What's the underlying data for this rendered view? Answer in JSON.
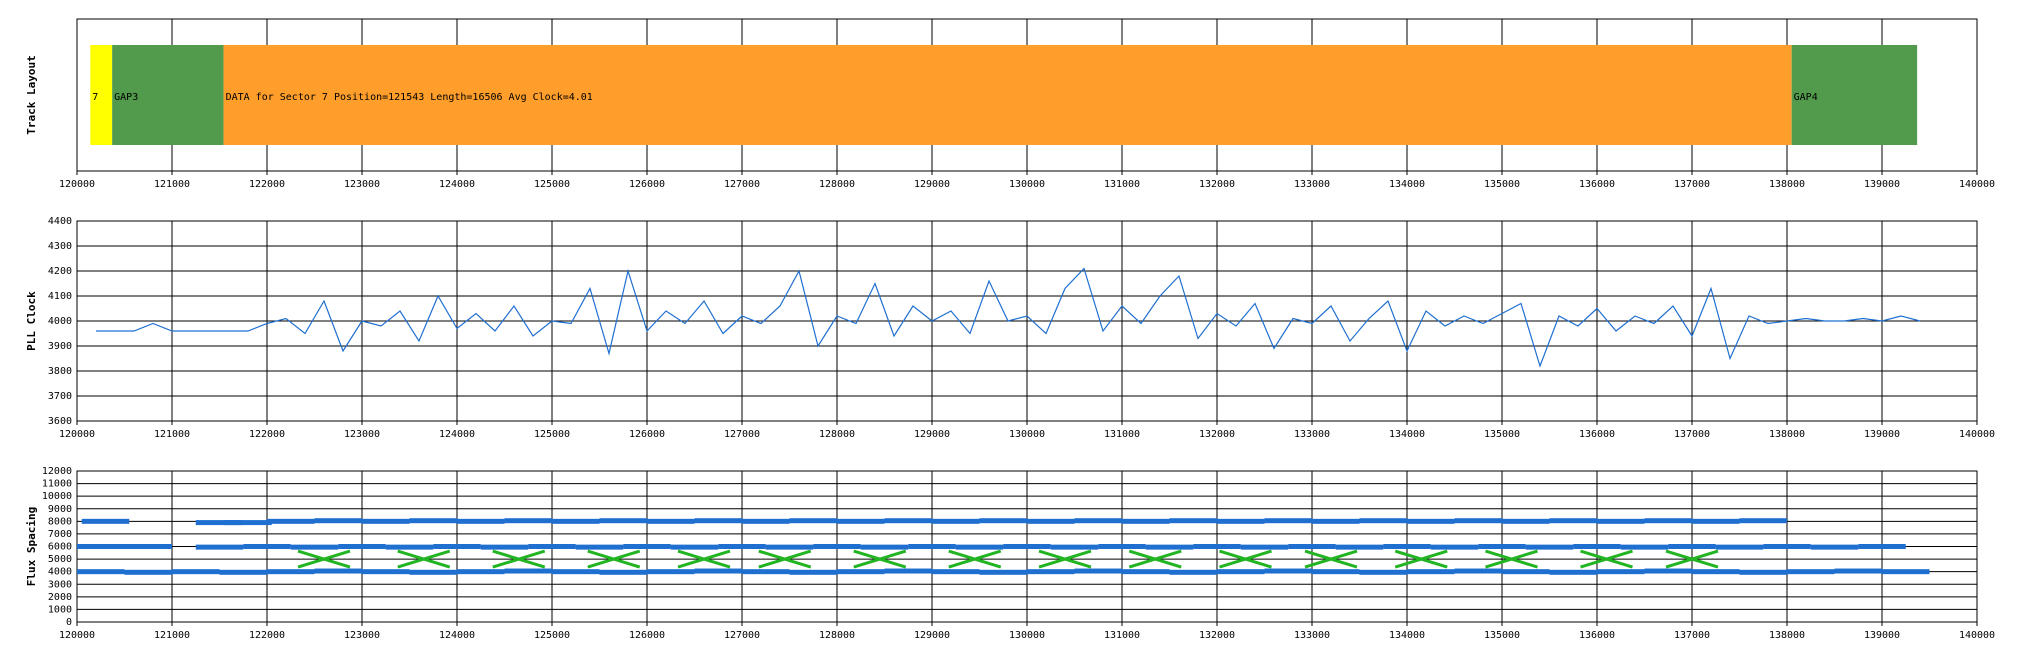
{
  "chart_data": [
    {
      "type": "track",
      "ylabel": "Track Layout",
      "segments": [
        {
          "label": "7",
          "start": 120140,
          "end": 120370,
          "color": "#ffff00"
        },
        {
          "label": "GAP3",
          "start": 120370,
          "end": 121543,
          "color": "#529a4c"
        },
        {
          "label": "DATA for Sector 7 Position=121543 Length=16506 Avg Clock=4.01",
          "start": 121543,
          "end": 138049,
          "color": "#ff9e2a"
        },
        {
          "label": "GAP4",
          "start": 138049,
          "end": 139370,
          "color": "#529a4c"
        }
      ],
      "xlim": [
        120000,
        140000
      ],
      "xticks": [
        120000,
        121000,
        122000,
        123000,
        124000,
        125000,
        126000,
        127000,
        128000,
        129000,
        130000,
        131000,
        132000,
        133000,
        134000,
        135000,
        136000,
        137000,
        138000,
        139000,
        140000
      ],
      "grid": true
    },
    {
      "type": "line",
      "ylabel": "PLL Clock",
      "x": [
        120200,
        120400,
        120600,
        120800,
        121000,
        121200,
        121400,
        121600,
        121800,
        122000,
        122200,
        122400,
        122600,
        122800,
        123000,
        123200,
        123400,
        123600,
        123800,
        124000,
        124200,
        124400,
        124600,
        124800,
        125000,
        125200,
        125400,
        125600,
        125800,
        126000,
        126200,
        126400,
        126600,
        126800,
        127000,
        127200,
        127400,
        127600,
        127800,
        128000,
        128200,
        128400,
        128600,
        128800,
        129000,
        129200,
        129400,
        129600,
        129800,
        130000,
        130200,
        130400,
        130600,
        130800,
        131000,
        131200,
        131400,
        131600,
        131800,
        132000,
        132200,
        132400,
        132600,
        132800,
        133000,
        133200,
        133400,
        133600,
        133800,
        134000,
        134200,
        134400,
        134600,
        134800,
        135000,
        135200,
        135400,
        135600,
        135800,
        136000,
        136200,
        136400,
        136600,
        136800,
        137000,
        137200,
        137400,
        137600,
        137800,
        138000,
        138200,
        138400,
        138600,
        138800,
        139000,
        139200,
        139400
      ],
      "series": [
        {
          "color": "#1f6fd1",
          "values": [
            3960,
            3960,
            3960,
            3990,
            3960,
            3960,
            3960,
            3960,
            3960,
            3990,
            4010,
            3950,
            4080,
            3880,
            4000,
            3980,
            4040,
            3920,
            4100,
            3970,
            4030,
            3960,
            4060,
            3940,
            4000,
            3990,
            4130,
            3870,
            4200,
            3960,
            4040,
            3990,
            4080,
            3950,
            4020,
            3990,
            4060,
            4200,
            3900,
            4020,
            3990,
            4150,
            3940,
            4060,
            4000,
            4040,
            3950,
            4160,
            4000,
            4020,
            3950,
            4130,
            4210,
            3960,
            4060,
            3990,
            4100,
            4180,
            3930,
            4030,
            3980,
            4070,
            3890,
            4010,
            3990,
            4060,
            3920,
            4010,
            4080,
            3880,
            4040,
            3980,
            4020,
            3990,
            4030,
            4070,
            3820,
            4020,
            3980,
            4050,
            3960,
            4020,
            3990,
            4060,
            3940,
            4130,
            3850,
            4020,
            3990,
            4000,
            4010,
            4000,
            4000,
            4010,
            4000,
            4020,
            4000
          ]
        }
      ],
      "xlim": [
        120000,
        140000
      ],
      "xticks": [
        120000,
        121000,
        122000,
        123000,
        124000,
        125000,
        126000,
        127000,
        128000,
        129000,
        130000,
        131000,
        132000,
        133000,
        134000,
        135000,
        136000,
        137000,
        138000,
        139000,
        140000
      ],
      "ylim": [
        3600,
        4400
      ],
      "yticks": [
        3600,
        3700,
        3800,
        3900,
        4000,
        4100,
        4200,
        4300,
        4400
      ],
      "grid": true
    },
    {
      "type": "scatter",
      "ylabel": "Flux Spacing",
      "series": [
        {
          "color": "#1f6fd1",
          "x": [
            120250,
            120750,
            121250,
            121750,
            122250,
            122750,
            123250,
            123750,
            124250,
            124750,
            125250,
            125750,
            126250,
            126750,
            127250,
            127750,
            128250,
            128750,
            129250,
            129750,
            130250,
            130750,
            131250,
            131750,
            132250,
            132750,
            133250,
            133750,
            134250,
            134750,
            135250,
            135750,
            136250,
            136750,
            137250,
            137750,
            138250,
            138750,
            139250
          ],
          "values": [
            4000,
            3950,
            4000,
            3950,
            4000,
            4050,
            4000,
            3950,
            4000,
            4050,
            4000,
            3950,
            4000,
            4050,
            4000,
            3950,
            4000,
            4050,
            4000,
            3950,
            4000,
            4050,
            4000,
            3950,
            4000,
            4050,
            4000,
            3950,
            4000,
            4050,
            4000,
            3950,
            4000,
            4050,
            4000,
            3950,
            4000,
            4050,
            4000
          ]
        },
        {
          "color": "#1f6fd1",
          "x": [
            120250,
            120750,
            121500,
            122000,
            122500,
            123000,
            123500,
            124000,
            124500,
            125000,
            125500,
            126000,
            126500,
            127000,
            127500,
            128000,
            128500,
            129000,
            129500,
            130000,
            130500,
            131000,
            131500,
            132000,
            132500,
            133000,
            133500,
            134000,
            134500,
            135000,
            135500,
            136000,
            136500,
            137000,
            137500,
            138000,
            138500,
            139000
          ],
          "values": [
            6000,
            6000,
            5950,
            6000,
            5950,
            6000,
            5950,
            6000,
            5950,
            6000,
            5950,
            6000,
            5950,
            6000,
            5950,
            6000,
            5950,
            6000,
            5950,
            6000,
            5950,
            6000,
            5950,
            6000,
            5950,
            6000,
            5950,
            6000,
            5950,
            6000,
            5950,
            6000,
            5950,
            6000,
            5950,
            6000,
            5950,
            6000
          ]
        },
        {
          "color": "#1f6fd1",
          "x": [
            120300,
            121500,
            121800,
            122250,
            122750,
            123250,
            123750,
            124250,
            124750,
            125250,
            125750,
            126250,
            126750,
            127250,
            127750,
            128250,
            128750,
            129250,
            129750,
            130250,
            130750,
            131250,
            131750,
            132250,
            132750,
            133250,
            133750,
            134250,
            134750,
            135250,
            135750,
            136250,
            136750,
            137250,
            137750
          ],
          "values": [
            8000,
            7900,
            7900,
            8000,
            8050,
            8000,
            8050,
            8000,
            8050,
            8000,
            8050,
            8000,
            8050,
            8000,
            8050,
            8000,
            8050,
            8000,
            8050,
            8000,
            8050,
            8000,
            8050,
            8000,
            8050,
            8000,
            8050,
            8000,
            8050,
            8000,
            8050,
            8000,
            8050,
            8000,
            8050
          ]
        },
        {
          "color": "#22b422",
          "marker": "x",
          "x": [
            122600,
            123650,
            124650,
            125650,
            126600,
            127450,
            128450,
            129450,
            130400,
            131350,
            132300,
            133200,
            134150,
            135100,
            136100,
            137000
          ],
          "values": [
            5000,
            5000,
            5000,
            5000,
            5000,
            5000,
            5000,
            5000,
            5000,
            5000,
            5000,
            5000,
            5000,
            5000,
            5000,
            5000
          ]
        }
      ],
      "xlim": [
        120000,
        140000
      ],
      "xticks": [
        120000,
        121000,
        122000,
        123000,
        124000,
        125000,
        126000,
        127000,
        128000,
        129000,
        130000,
        131000,
        132000,
        133000,
        134000,
        135000,
        136000,
        137000,
        138000,
        139000,
        140000
      ],
      "ylim": [
        0,
        12000
      ],
      "yticks": [
        0,
        1000,
        2000,
        3000,
        4000,
        5000,
        6000,
        7000,
        8000,
        9000,
        10000,
        11000,
        12000
      ],
      "grid": true
    }
  ]
}
